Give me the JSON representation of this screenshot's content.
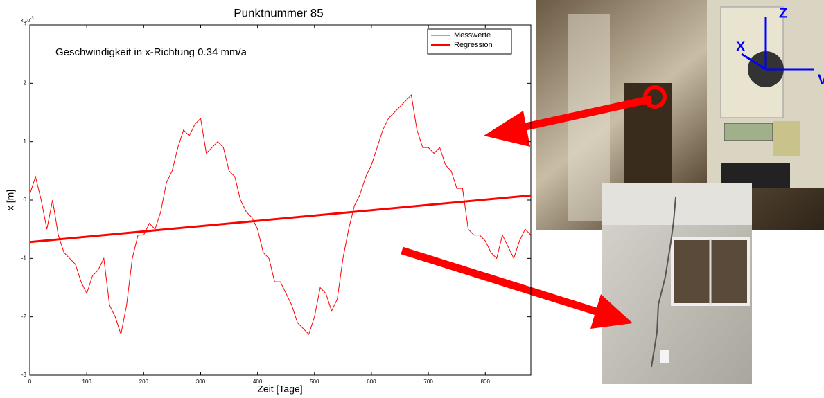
{
  "chart_data": {
    "type": "line",
    "title": "Punktnummer 85",
    "annotation": "Geschwindigkeit in x-Richtung 0.34 mm/a",
    "xlabel": "Zeit [Tage]",
    "ylabel": "x [m]",
    "y_multiplier": {
      "base": "x 10",
      "exponent": "-3"
    },
    "xlim": [
      0,
      880
    ],
    "xticks": [
      0,
      100,
      200,
      300,
      400,
      500,
      600,
      700,
      800
    ],
    "ylim": [
      -3,
      3
    ],
    "yticks": [
      -3,
      -2,
      -1,
      0,
      1,
      2,
      3
    ],
    "legend": "upper right",
    "series": [
      {
        "name": "Messwerte",
        "color": "#ff0000",
        "x": [
          0,
          10,
          20,
          30,
          40,
          50,
          60,
          70,
          80,
          90,
          100,
          110,
          120,
          130,
          140,
          150,
          160,
          170,
          180,
          190,
          200,
          210,
          220,
          230,
          240,
          250,
          260,
          270,
          280,
          290,
          300,
          310,
          320,
          330,
          340,
          350,
          360,
          370,
          380,
          390,
          400,
          410,
          420,
          430,
          440,
          450,
          460,
          470,
          480,
          490,
          500,
          510,
          520,
          530,
          540,
          550,
          560,
          570,
          580,
          590,
          600,
          610,
          620,
          630,
          640,
          650,
          660,
          670,
          680,
          690,
          700,
          710,
          720,
          730,
          740,
          750,
          760,
          770,
          780,
          790,
          800,
          810,
          820,
          830,
          840,
          850,
          860,
          870,
          880
        ],
        "values": [
          0.1,
          0.4,
          0.0,
          -0.5,
          0.0,
          -0.6,
          -0.9,
          -1.0,
          -1.1,
          -1.4,
          -1.6,
          -1.3,
          -1.2,
          -1.0,
          -1.8,
          -2.0,
          -2.3,
          -1.8,
          -1.0,
          -0.6,
          -0.6,
          -0.4,
          -0.5,
          -0.2,
          0.3,
          0.5,
          0.9,
          1.2,
          1.1,
          1.3,
          1.4,
          0.8,
          0.9,
          1.0,
          0.9,
          0.5,
          0.4,
          0.0,
          -0.2,
          -0.3,
          -0.5,
          -0.9,
          -1.0,
          -1.4,
          -1.4,
          -1.6,
          -1.8,
          -2.1,
          -2.2,
          -2.3,
          -2.0,
          -1.5,
          -1.6,
          -1.9,
          -1.7,
          -1.0,
          -0.5,
          -0.1,
          0.1,
          0.4,
          0.6,
          0.9,
          1.2,
          1.4,
          1.5,
          1.6,
          1.7,
          1.8,
          1.2,
          0.9,
          0.9,
          0.8,
          0.9,
          0.6,
          0.5,
          0.2,
          0.2,
          -0.5,
          -0.6,
          -0.6,
          -0.7,
          -0.9,
          -1.0,
          -0.6,
          -0.8,
          -1.0,
          -0.7,
          -0.5,
          -0.6
        ]
      },
      {
        "name": "Regression",
        "color": "#ff0000",
        "x": [
          0,
          880
        ],
        "values": [
          -0.72,
          0.08
        ]
      }
    ]
  },
  "photo_labels": [
    "Z",
    "X",
    "V"
  ]
}
